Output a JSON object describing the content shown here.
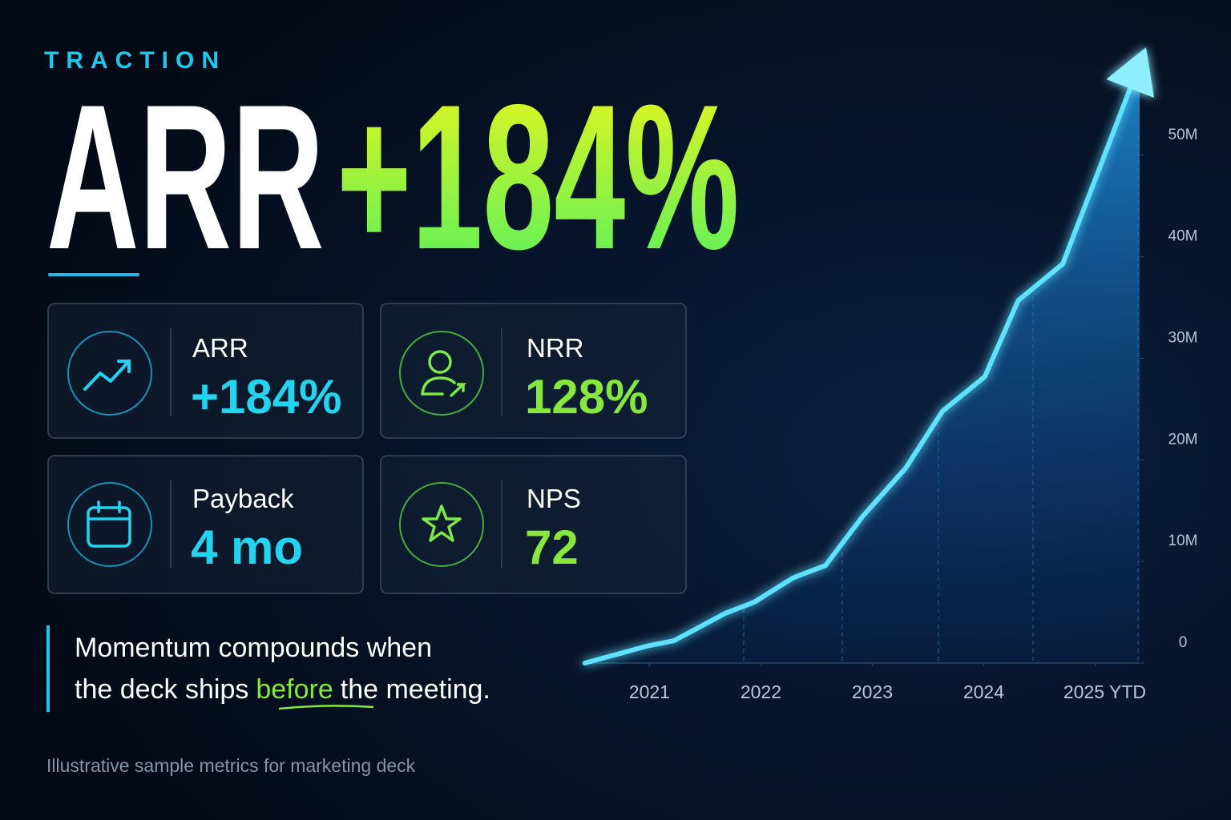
{
  "header": {
    "eyebrow": "TRACTION",
    "title": "ARR",
    "value": "+184%"
  },
  "cards": [
    {
      "label": "ARR",
      "value": "+184%"
    },
    {
      "label": "NRR",
      "value": "128%"
    },
    {
      "label": "Payback",
      "value": "4 mo"
    },
    {
      "label": "NPS",
      "value": "72"
    }
  ],
  "quote": {
    "line1": "Momentum compounds when",
    "line2_start": "the deck ships",
    "highlight": "before",
    "line2_end": "the meeting."
  },
  "footnote": "Illustrative sample metrics for marketing deck",
  "chart_data": {
    "type": "area",
    "x": [
      2020.42,
      2020.99,
      2021.22,
      2021.68,
      2021.94,
      2022.29,
      2022.58,
      2022.91,
      2023.3,
      2023.63,
      2024.01,
      2024.31,
      2024.71,
      2025.4
    ],
    "series": [
      {
        "color": "#5ee2ff",
        "values": [
          0,
          1700000,
          2200000,
          4900000,
          6000000,
          8400000,
          9600000,
          14400000,
          19200000,
          24800000,
          28200000,
          35700000,
          39300000,
          59000000
        ]
      }
    ],
    "xlim": [
      2020.4,
      2025.45
    ],
    "xticks": [
      2021,
      2022,
      2023,
      2024,
      {
        "value": 2025,
        "label": "2025 YTD"
      }
    ],
    "ylim": [
      0,
      60000000
    ],
    "yticks": [
      {
        "value": 0,
        "label": "0"
      },
      {
        "value": 10000000,
        "label": "10M"
      },
      {
        "value": 20000000,
        "label": "20M"
      },
      {
        "value": 30000000,
        "label": "30M"
      },
      {
        "value": 40000000,
        "label": "40M"
      },
      {
        "value": 50000000,
        "label": "50M"
      }
    ]
  }
}
